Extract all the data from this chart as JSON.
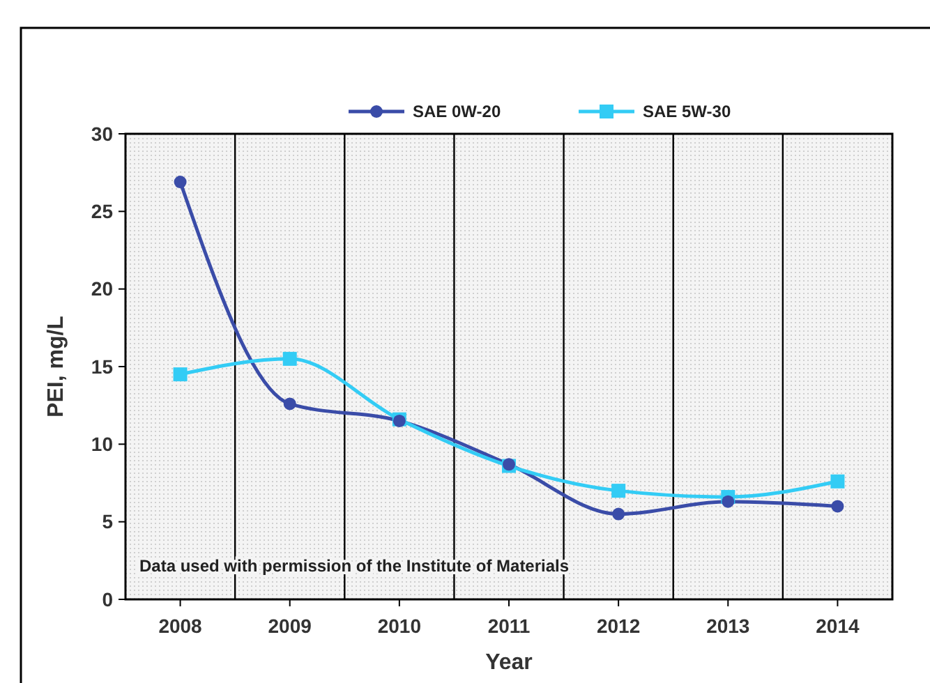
{
  "chart_data": {
    "type": "line",
    "xlabel": "Year",
    "ylabel": "PEI, mg/L",
    "categories": [
      "2008",
      "2009",
      "2010",
      "2011",
      "2012",
      "2013",
      "2014"
    ],
    "series": [
      {
        "name": "SAE 0W-20",
        "color": "#3a4ca8",
        "marker": "circle",
        "values": [
          26.9,
          12.6,
          11.5,
          8.7,
          5.5,
          6.3,
          6.0
        ]
      },
      {
        "name": "SAE 5W-30",
        "color": "#33ccf5",
        "marker": "square",
        "values": [
          14.5,
          15.5,
          11.6,
          8.6,
          7.0,
          6.6,
          7.6
        ]
      }
    ],
    "ylim": [
      0,
      30
    ],
    "yticks": [
      0,
      5,
      10,
      15,
      20,
      25,
      30
    ],
    "grid": "x",
    "legend": "top",
    "line_style": "solid",
    "annotations": [
      "Data used with permission of the Institute of Materials"
    ]
  }
}
